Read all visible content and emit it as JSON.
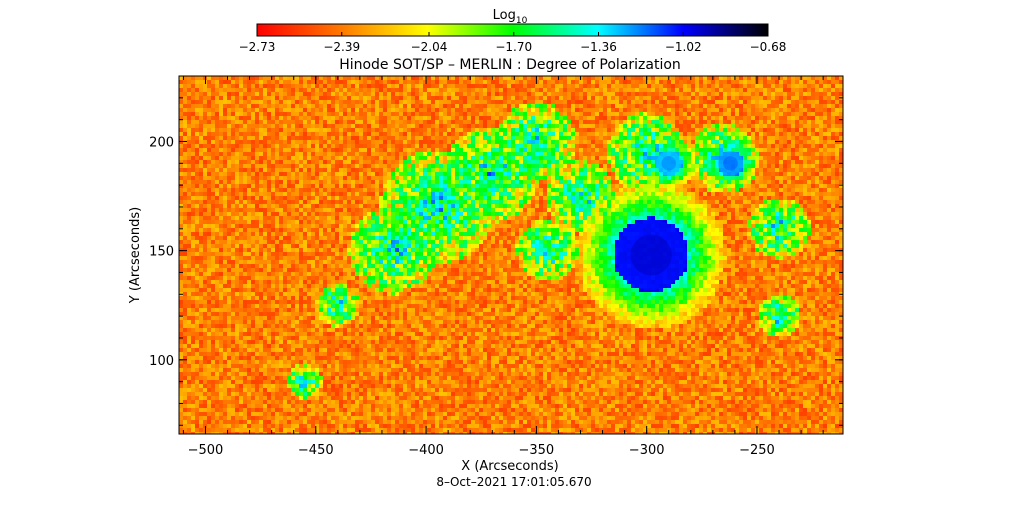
{
  "chart_data": {
    "type": "heatmap",
    "title": "Hinode SOT/SP – MERLIN : Degree of Polarization",
    "xlabel": "X (Arcseconds)",
    "ylabel": "Y (Arcseconds)",
    "timestamp": "8–Oct–2021 17:01:05.670",
    "xlim": [
      -512,
      -211
    ],
    "ylim": [
      66,
      230
    ],
    "xticks": [
      -500,
      -450,
      -400,
      -350,
      -300,
      -250
    ],
    "xtick_labels": [
      "−500",
      "−450",
      "−400",
      "−350",
      "−300",
      "−250"
    ],
    "yticks": [
      100,
      150,
      200
    ],
    "ytick_labels": [
      "100",
      "150",
      "200"
    ],
    "colorbar": {
      "label_base": "Log",
      "label_sub": "10",
      "range": [
        -2.73,
        -0.68
      ],
      "ticks": [
        -2.73,
        -2.39,
        -2.04,
        -1.7,
        -1.36,
        -1.02,
        -0.68
      ],
      "tick_labels": [
        "−2.73",
        "−2.39",
        "−2.04",
        "−1.70",
        "−1.36",
        "−1.02",
        "−0.68"
      ],
      "colormap": [
        "#ff0000",
        "#ff7a00",
        "#ffff00",
        "#00ff00",
        "#00ffff",
        "#0000ff",
        "#000000"
      ]
    },
    "features": [
      {
        "type": "sunspot",
        "x": -298,
        "y": 148,
        "radius": 17,
        "value": -1.05
      },
      {
        "type": "pore",
        "x": -262,
        "y": 190,
        "radius": 6,
        "value": -1.25
      },
      {
        "type": "pore",
        "x": -290,
        "y": 190,
        "radius": 6,
        "value": -1.3
      }
    ]
  }
}
